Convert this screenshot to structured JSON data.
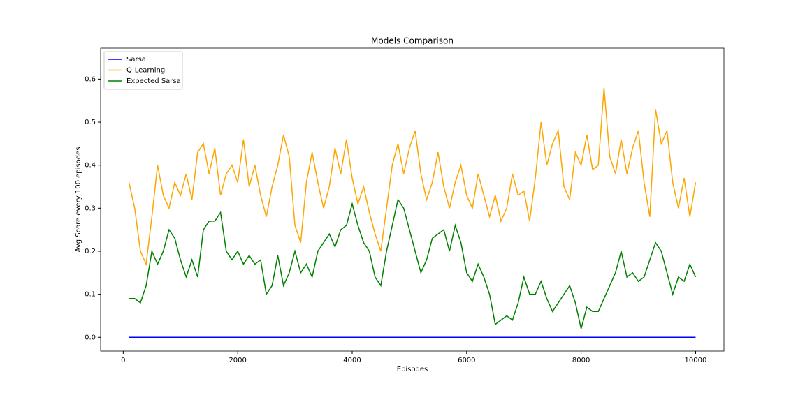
{
  "chart_data": {
    "type": "line",
    "title": "Models Comparison",
    "xlabel": "Episodes",
    "ylabel": "Avg Score every 100 episodes",
    "x": [
      100,
      200,
      300,
      400,
      500,
      600,
      700,
      800,
      900,
      1000,
      1100,
      1200,
      1300,
      1400,
      1500,
      1600,
      1700,
      1800,
      1900,
      2000,
      2100,
      2200,
      2300,
      2400,
      2500,
      2600,
      2700,
      2800,
      2900,
      3000,
      3100,
      3200,
      3300,
      3400,
      3500,
      3600,
      3700,
      3800,
      3900,
      4000,
      4100,
      4200,
      4300,
      4400,
      4500,
      4600,
      4700,
      4800,
      4900,
      5000,
      5100,
      5200,
      5300,
      5400,
      5500,
      5600,
      5700,
      5800,
      5900,
      6000,
      6100,
      6200,
      6300,
      6400,
      6500,
      6600,
      6700,
      6800,
      6900,
      7000,
      7100,
      7200,
      7300,
      7400,
      7500,
      7600,
      7700,
      7800,
      7900,
      8000,
      8100,
      8200,
      8300,
      8400,
      8500,
      8600,
      8700,
      8800,
      8900,
      9000,
      9100,
      9200,
      9300,
      9400,
      9500,
      9600,
      9700,
      9800,
      9900,
      10000
    ],
    "series": [
      {
        "name": "Sarsa",
        "color": "#0000ff",
        "values": [
          0,
          0,
          0,
          0,
          0,
          0,
          0,
          0,
          0,
          0,
          0,
          0,
          0,
          0,
          0,
          0,
          0,
          0,
          0,
          0,
          0,
          0,
          0,
          0,
          0,
          0,
          0,
          0,
          0,
          0,
          0,
          0,
          0,
          0,
          0,
          0,
          0,
          0,
          0,
          0,
          0,
          0,
          0,
          0,
          0,
          0,
          0,
          0,
          0,
          0,
          0,
          0,
          0,
          0,
          0,
          0,
          0,
          0,
          0,
          0,
          0,
          0,
          0,
          0,
          0,
          0,
          0,
          0,
          0,
          0,
          0,
          0,
          0,
          0,
          0,
          0,
          0,
          0,
          0,
          0,
          0,
          0,
          0,
          0,
          0,
          0,
          0,
          0,
          0,
          0,
          0,
          0,
          0,
          0,
          0,
          0,
          0,
          0,
          0,
          0
        ]
      },
      {
        "name": "Q-Learning",
        "color": "#ffa500",
        "values": [
          0.36,
          0.3,
          0.2,
          0.17,
          0.28,
          0.4,
          0.33,
          0.3,
          0.36,
          0.33,
          0.38,
          0.32,
          0.43,
          0.45,
          0.38,
          0.44,
          0.33,
          0.38,
          0.4,
          0.36,
          0.46,
          0.35,
          0.4,
          0.33,
          0.28,
          0.35,
          0.4,
          0.47,
          0.42,
          0.26,
          0.22,
          0.36,
          0.43,
          0.36,
          0.3,
          0.35,
          0.44,
          0.38,
          0.46,
          0.37,
          0.31,
          0.35,
          0.29,
          0.24,
          0.2,
          0.3,
          0.4,
          0.45,
          0.38,
          0.44,
          0.48,
          0.38,
          0.32,
          0.36,
          0.43,
          0.35,
          0.3,
          0.36,
          0.4,
          0.33,
          0.3,
          0.38,
          0.33,
          0.28,
          0.33,
          0.27,
          0.3,
          0.38,
          0.33,
          0.34,
          0.27,
          0.37,
          0.5,
          0.4,
          0.45,
          0.48,
          0.35,
          0.32,
          0.43,
          0.4,
          0.47,
          0.39,
          0.4,
          0.58,
          0.42,
          0.38,
          0.46,
          0.38,
          0.44,
          0.48,
          0.36,
          0.28,
          0.53,
          0.45,
          0.48,
          0.36,
          0.3,
          0.37,
          0.28,
          0.36
        ]
      },
      {
        "name": "Expected Sarsa",
        "color": "#008000",
        "values": [
          0.09,
          0.09,
          0.08,
          0.12,
          0.2,
          0.17,
          0.2,
          0.25,
          0.23,
          0.18,
          0.14,
          0.18,
          0.14,
          0.25,
          0.27,
          0.27,
          0.29,
          0.2,
          0.18,
          0.2,
          0.17,
          0.19,
          0.17,
          0.18,
          0.1,
          0.12,
          0.19,
          0.12,
          0.15,
          0.2,
          0.15,
          0.17,
          0.14,
          0.2,
          0.22,
          0.24,
          0.21,
          0.25,
          0.26,
          0.31,
          0.26,
          0.22,
          0.2,
          0.14,
          0.12,
          0.2,
          0.26,
          0.32,
          0.3,
          0.25,
          0.2,
          0.15,
          0.18,
          0.23,
          0.24,
          0.25,
          0.2,
          0.26,
          0.22,
          0.15,
          0.13,
          0.17,
          0.14,
          0.1,
          0.03,
          0.04,
          0.05,
          0.04,
          0.08,
          0.14,
          0.1,
          0.1,
          0.13,
          0.09,
          0.06,
          0.08,
          0.1,
          0.12,
          0.08,
          0.02,
          0.07,
          0.06,
          0.06,
          0.09,
          0.12,
          0.15,
          0.2,
          0.14,
          0.15,
          0.13,
          0.14,
          0.18,
          0.22,
          0.2,
          0.15,
          0.1,
          0.14,
          0.13,
          0.17,
          0.14
        ]
      }
    ],
    "xlim": [
      -395,
      10495
    ],
    "ylim": [
      -0.032,
      0.672
    ],
    "xticks": [
      0,
      2000,
      4000,
      6000,
      8000,
      10000
    ],
    "yticks": [
      {
        "value": 0,
        "label": "0.0"
      },
      0.1,
      0.2,
      0.3,
      0.4,
      0.5,
      0.6
    ],
    "grid": false,
    "legend": "upper left"
  }
}
